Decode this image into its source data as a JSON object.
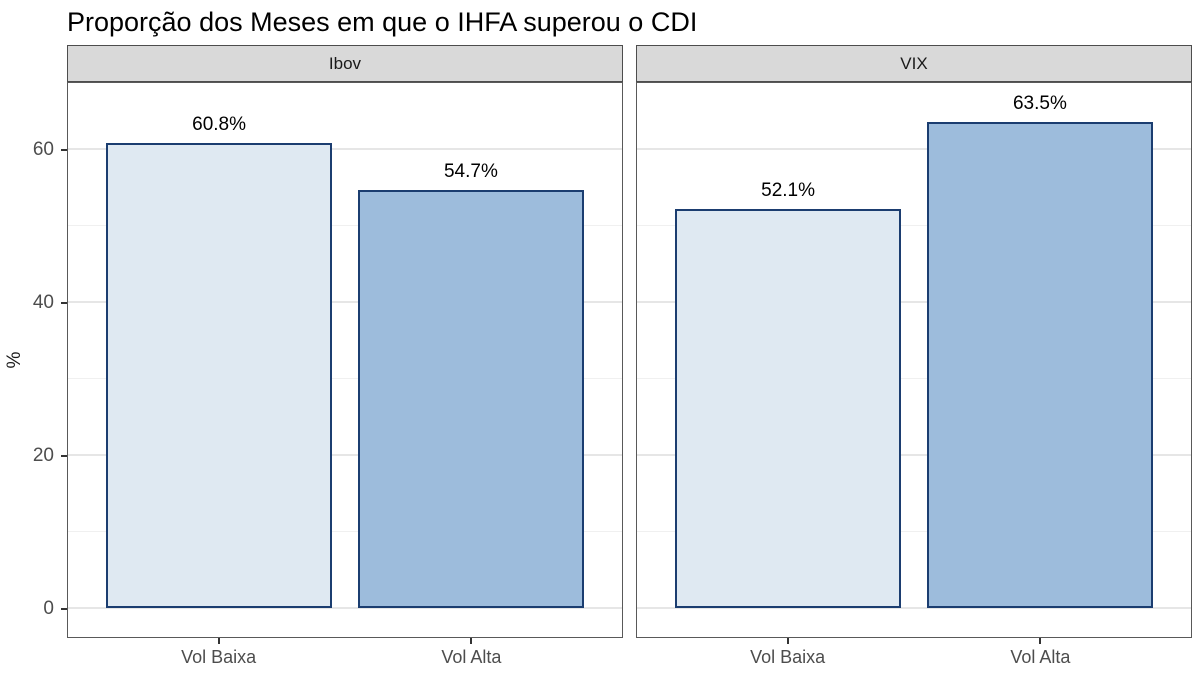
{
  "title": "Proporção dos Meses em que o IHFA superou o CDI",
  "y_axis": {
    "label": "%",
    "ticks": [
      0,
      20,
      40,
      60
    ],
    "tick_labels": [
      "0",
      "20",
      "40",
      "60"
    ],
    "minor_ticks": [
      10,
      30,
      50
    ]
  },
  "chart_data": {
    "type": "bar",
    "title": "Proporção dos Meses em que o IHFA superou o CDI",
    "xlabel": "",
    "ylabel": "%",
    "ylim": [
      0,
      68.9
    ],
    "grid": true,
    "legend": "none",
    "facets": [
      {
        "label": "Ibov",
        "categories": [
          "Vol Baixa",
          "Vol Alta"
        ],
        "values": [
          60.8,
          54.7
        ],
        "value_labels": [
          "60.8%",
          "54.7%"
        ]
      },
      {
        "label": "VIX",
        "categories": [
          "Vol Baixa",
          "Vol Alta"
        ],
        "values": [
          52.1,
          63.5
        ],
        "value_labels": [
          "52.1%",
          "63.5%"
        ]
      }
    ],
    "colors": {
      "vol_baixa_fill": "#dfe9f2",
      "vol_alta_fill": "#9dbcdc",
      "bar_border": "#1b3d70",
      "strip_bg": "#d9d9d9",
      "panel_border": "#595959",
      "grid_major": "#e6e6e6",
      "grid_minor": "#f0f0f0",
      "axis_text": "#4d4d4d"
    }
  }
}
